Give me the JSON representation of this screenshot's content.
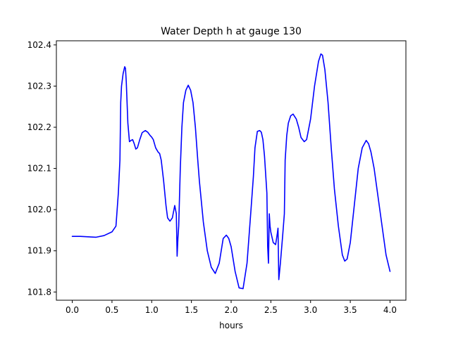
{
  "chart_data": {
    "type": "line",
    "title": "Water Depth h at gauge 130",
    "xlabel": "hours",
    "ylabel": "",
    "xlim": [
      -0.2,
      4.2
    ],
    "ylim": [
      101.78,
      102.41
    ],
    "grid": false,
    "xticks": [
      {
        "value": 0.0,
        "label": "0.0"
      },
      {
        "value": 0.5,
        "label": "0.5"
      },
      {
        "value": 1.0,
        "label": "1.0"
      },
      {
        "value": 1.5,
        "label": "1.5"
      },
      {
        "value": 2.0,
        "label": "2.0"
      },
      {
        "value": 2.5,
        "label": "2.5"
      },
      {
        "value": 3.0,
        "label": "3.0"
      },
      {
        "value": 3.5,
        "label": "3.5"
      },
      {
        "value": 4.0,
        "label": "4.0"
      }
    ],
    "yticks": [
      {
        "value": 101.8,
        "label": "101.8"
      },
      {
        "value": 101.9,
        "label": "101.9"
      },
      {
        "value": 102.0,
        "label": "102.0"
      },
      {
        "value": 102.1,
        "label": "102.1"
      },
      {
        "value": 102.2,
        "label": "102.2"
      },
      {
        "value": 102.3,
        "label": "102.3"
      },
      {
        "value": 102.4,
        "label": "102.4"
      }
    ],
    "series": [
      {
        "name": "",
        "color": "#0000ff",
        "x": [
          0.0,
          0.1,
          0.2,
          0.3,
          0.4,
          0.5,
          0.55,
          0.58,
          0.6,
          0.61,
          0.62,
          0.64,
          0.66,
          0.67,
          0.68,
          0.7,
          0.72,
          0.74,
          0.76,
          0.78,
          0.8,
          0.82,
          0.85,
          0.88,
          0.92,
          0.95,
          0.98,
          1.0,
          1.02,
          1.05,
          1.08,
          1.1,
          1.12,
          1.15,
          1.18,
          1.2,
          1.23,
          1.26,
          1.29,
          1.31,
          1.32,
          1.33,
          1.34,
          1.36,
          1.37,
          1.38,
          1.4,
          1.43,
          1.46,
          1.49,
          1.52,
          1.55,
          1.58,
          1.6,
          1.65,
          1.7,
          1.75,
          1.8,
          1.85,
          1.9,
          1.94,
          1.97,
          2.0,
          2.05,
          2.1,
          2.15,
          2.2,
          2.25,
          2.28,
          2.3,
          2.33,
          2.36,
          2.38,
          2.4,
          2.42,
          2.44,
          2.45,
          2.46,
          2.47,
          2.48,
          2.49,
          2.5,
          2.53,
          2.56,
          2.58,
          2.59,
          2.6,
          2.62,
          2.65,
          2.67,
          2.68,
          2.7,
          2.72,
          2.75,
          2.78,
          2.82,
          2.85,
          2.88,
          2.92,
          2.95,
          3.0,
          3.05,
          3.1,
          3.13,
          3.15,
          3.18,
          3.22,
          3.26,
          3.3,
          3.35,
          3.4,
          3.43,
          3.46,
          3.5,
          3.55,
          3.6,
          3.65,
          3.7,
          3.73,
          3.76,
          3.8,
          3.85,
          3.9,
          3.95,
          4.0
        ],
        "y": [
          101.935,
          101.935,
          101.934,
          101.933,
          101.937,
          101.946,
          101.96,
          102.04,
          102.12,
          102.26,
          102.3,
          102.33,
          102.347,
          102.343,
          102.31,
          102.21,
          102.165,
          102.168,
          102.17,
          102.16,
          102.147,
          102.15,
          102.17,
          102.187,
          102.192,
          102.188,
          102.18,
          102.176,
          102.17,
          102.15,
          102.14,
          102.136,
          102.12,
          102.07,
          102.01,
          101.98,
          101.972,
          101.98,
          102.01,
          101.99,
          101.887,
          101.93,
          101.96,
          102.1,
          102.15,
          102.2,
          102.26,
          102.29,
          102.302,
          102.29,
          102.26,
          102.2,
          102.12,
          102.07,
          101.97,
          101.9,
          101.86,
          101.845,
          101.87,
          101.93,
          101.938,
          101.93,
          101.91,
          101.85,
          101.81,
          101.808,
          101.87,
          102.0,
          102.08,
          102.15,
          102.19,
          102.192,
          102.188,
          102.17,
          102.13,
          102.07,
          102.04,
          101.91,
          101.87,
          101.99,
          101.96,
          101.945,
          101.92,
          101.915,
          101.94,
          101.955,
          101.83,
          101.87,
          101.94,
          101.99,
          102.12,
          102.18,
          102.21,
          102.228,
          102.232,
          102.22,
          102.2,
          102.175,
          102.165,
          102.17,
          102.22,
          102.3,
          102.36,
          102.378,
          102.375,
          102.34,
          102.26,
          102.15,
          102.05,
          101.96,
          101.89,
          101.875,
          101.88,
          101.92,
          102.01,
          102.1,
          102.15,
          102.168,
          102.16,
          102.14,
          102.1,
          102.03,
          101.96,
          101.89,
          101.85
        ]
      }
    ]
  }
}
